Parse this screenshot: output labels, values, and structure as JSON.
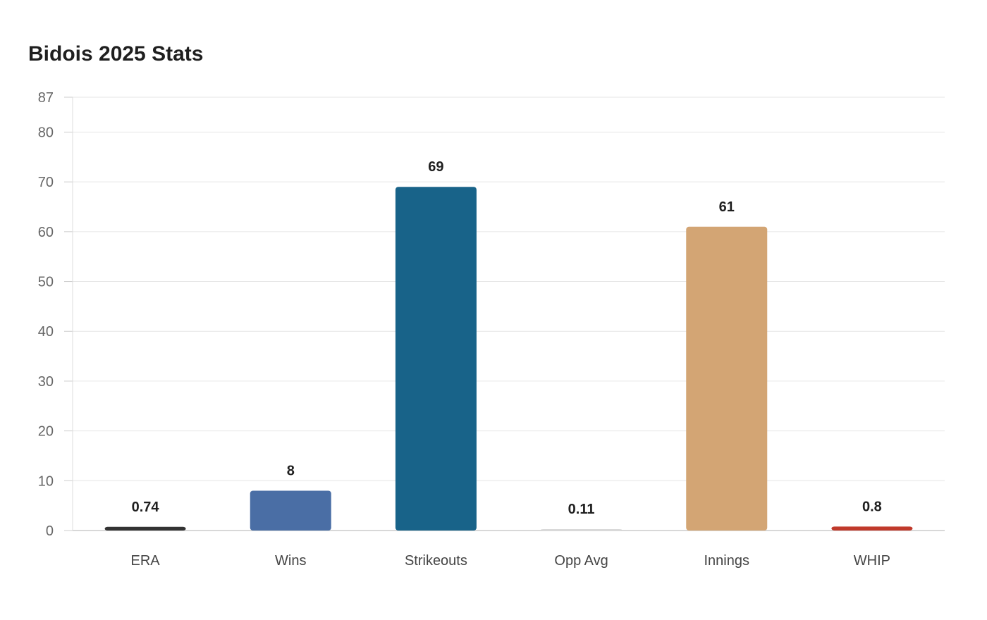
{
  "chart_data": {
    "type": "bar",
    "title": "Bidois 2025 Stats",
    "xlabel": "",
    "ylabel": "",
    "categories": [
      "ERA",
      "Wins",
      "Strikeouts",
      "Opp Avg",
      "Innings",
      "WHIP"
    ],
    "values": [
      0.74,
      8,
      69,
      0.11,
      61,
      0.8
    ],
    "value_labels": [
      "0.74",
      "8",
      "69",
      "0.11",
      "61",
      "0.8"
    ],
    "bar_colors": [
      "#333333",
      "#4a6ea5",
      "#186389",
      "#d9d9d9",
      "#d3a574",
      "#c0392b"
    ],
    "ylim": [
      0,
      87
    ],
    "yticks": [
      0,
      10,
      20,
      30,
      40,
      50,
      60,
      70,
      80,
      87
    ],
    "grid": true,
    "legend": "none"
  }
}
